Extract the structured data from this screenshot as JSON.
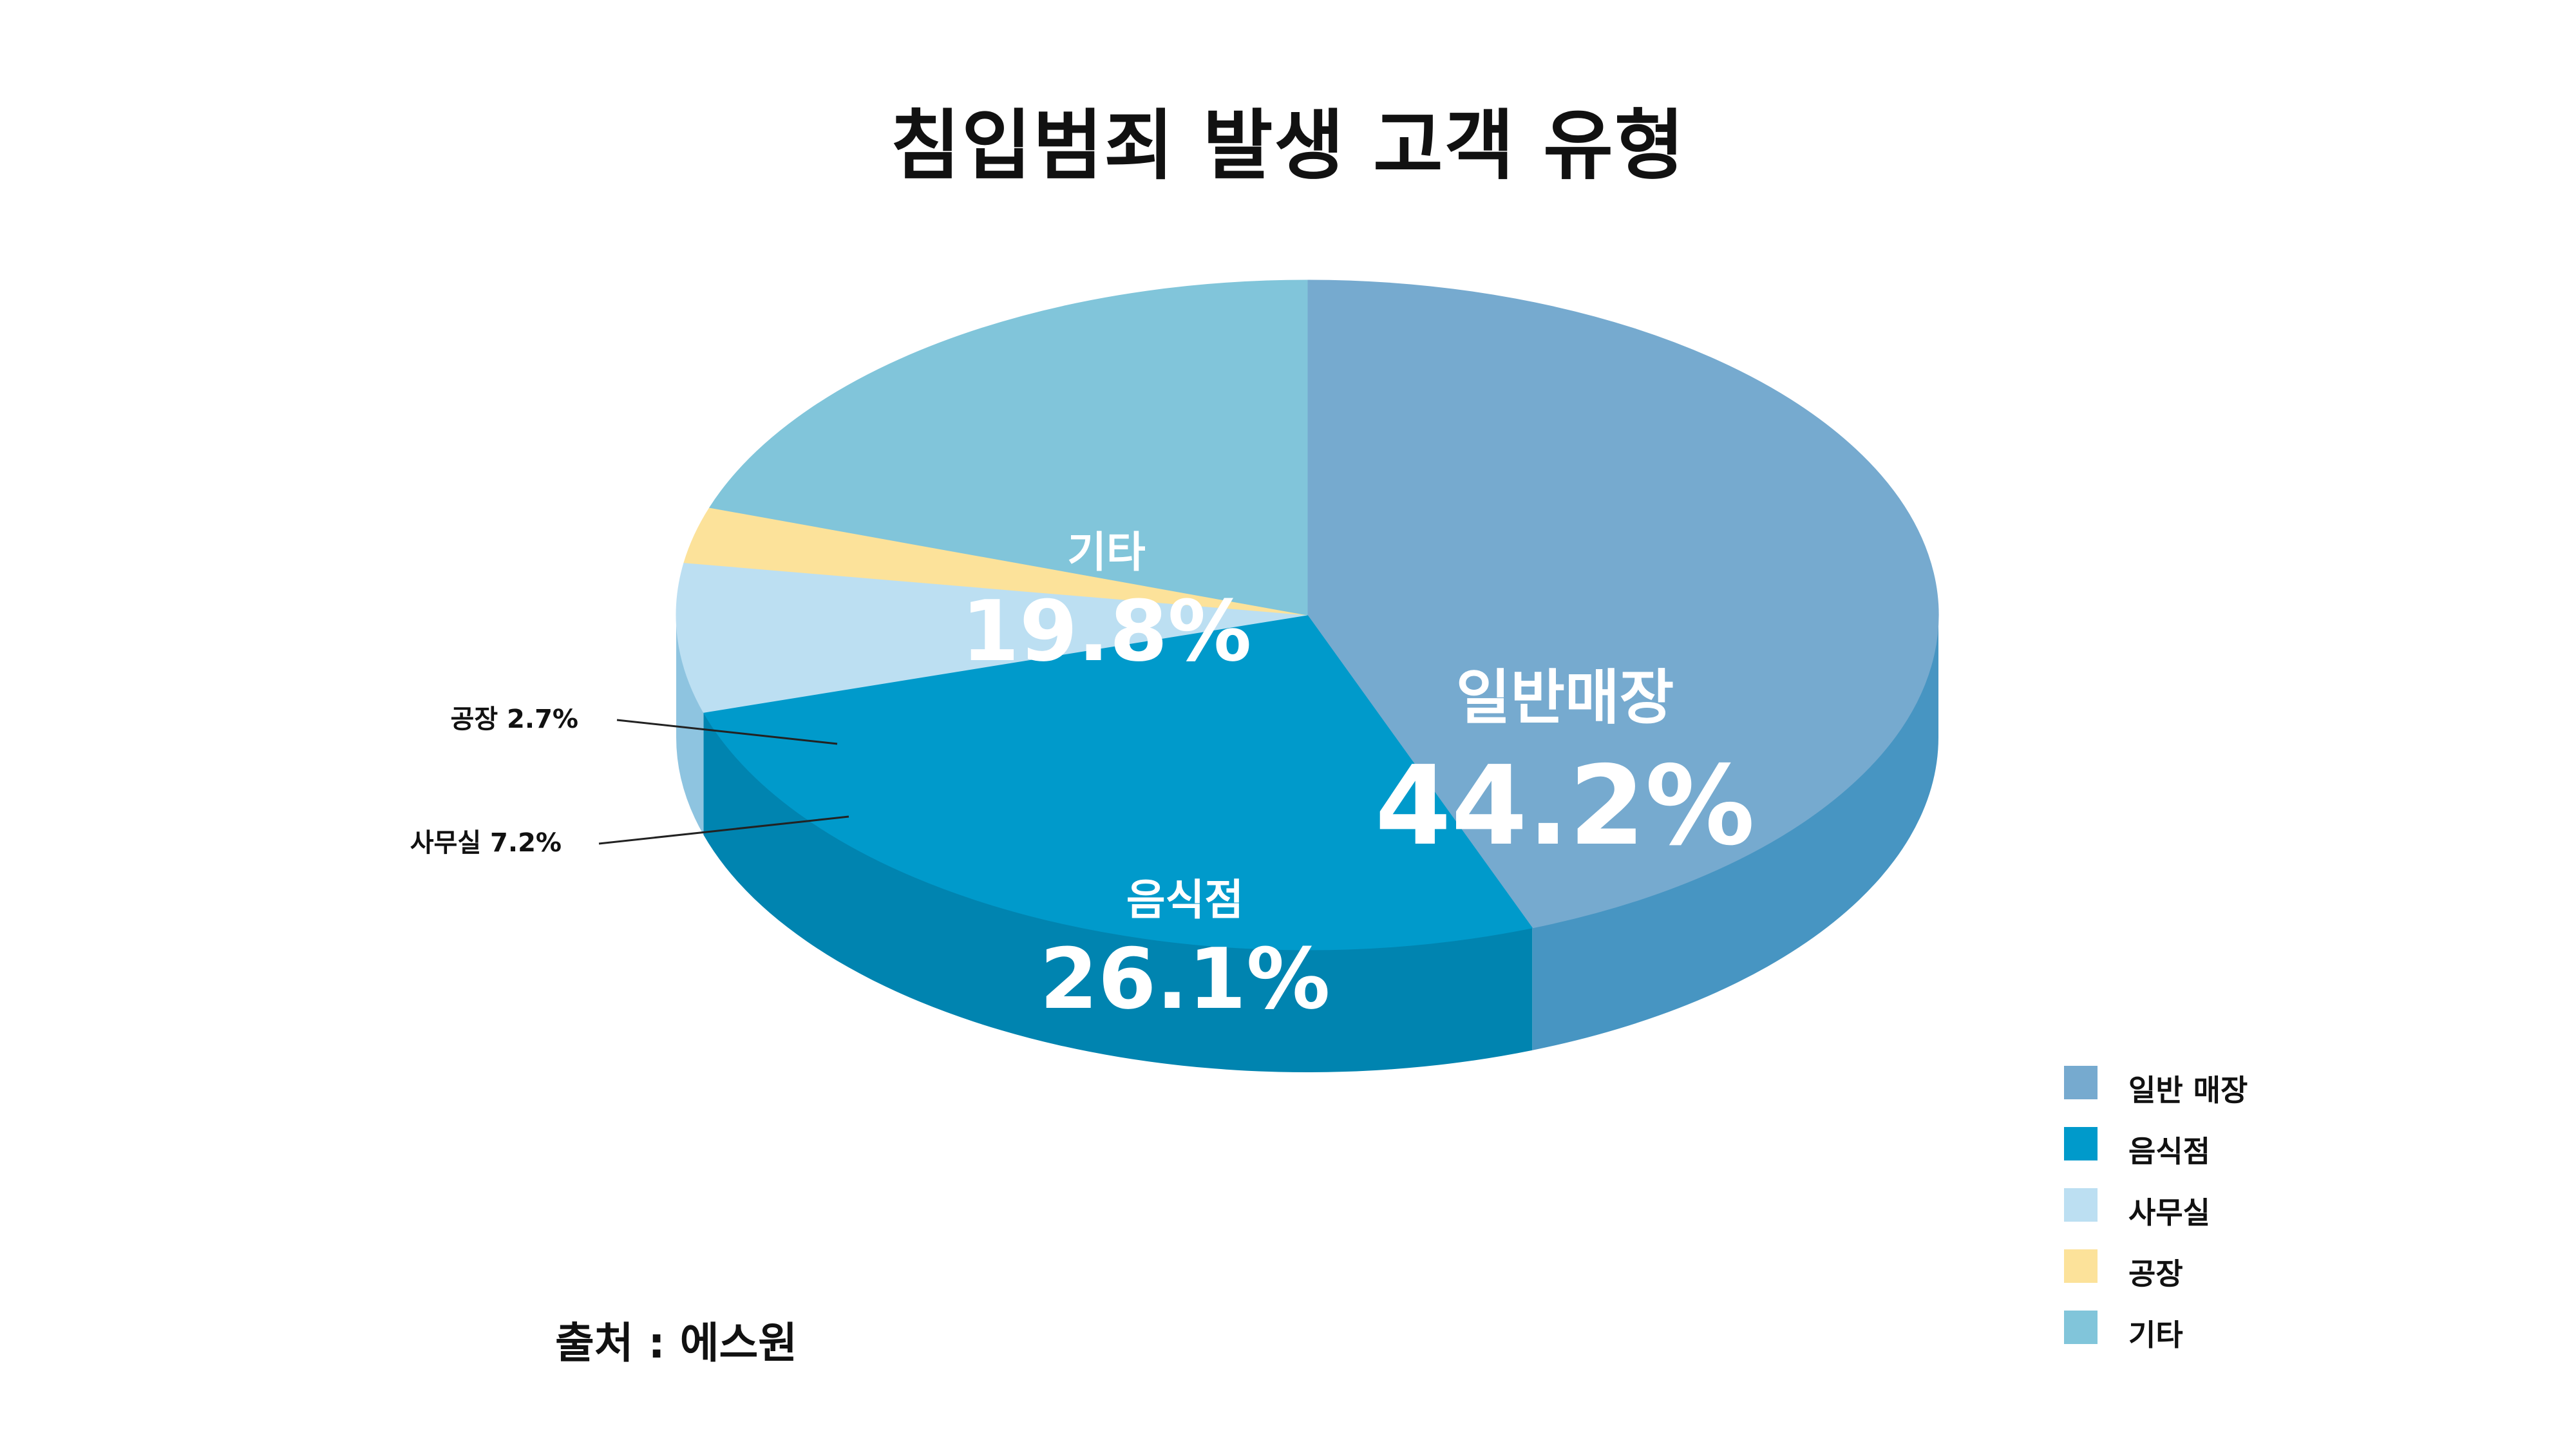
{
  "chart_data": {
    "type": "pie",
    "title": "침입범죄 발생 고객 유형",
    "slices": [
      {
        "name": "일반매장",
        "legend": "일반 매장",
        "value": 44.2,
        "value_label": "44.2%",
        "color": "#76AACF",
        "side_color": "#4795C2"
      },
      {
        "name": "음식점",
        "legend": "음식점",
        "value": 26.1,
        "value_label": "26.1%",
        "color": "#009ACB",
        "side_color": "#0084B0"
      },
      {
        "name": "사무실",
        "legend": "사무실",
        "value": 7.2,
        "value_label": "7.2%",
        "color": "#BCDFF2",
        "side_color": "#8EC4E0"
      },
      {
        "name": "공장",
        "legend": "공장",
        "value": 2.7,
        "value_label": "2.7%",
        "color": "#FCE29A",
        "side_color": "#E9C96E"
      },
      {
        "name": "기타",
        "legend": "기타",
        "value": 19.8,
        "value_label": "19.8%",
        "color": "#81C5DA",
        "side_color": "#5FAFCA"
      }
    ],
    "legend_position": "bottom-right",
    "source": "출처 : 에스원"
  }
}
